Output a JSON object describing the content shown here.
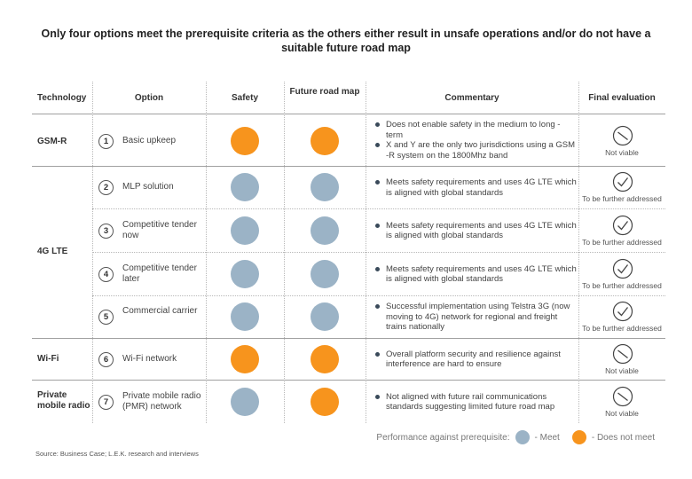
{
  "title": "Only four options meet the prerequisite criteria as the others either result in unsafe operations and/or do not have a suitable future road map",
  "headers": {
    "technology": "Technology",
    "option": "Option",
    "safety": "Safety",
    "future": "Future road map",
    "commentary": "Commentary",
    "final": "Final evaluation"
  },
  "technologies": [
    "GSM-R",
    "4G LTE",
    "Wi-Fi",
    "Private mobile radio"
  ],
  "options": [
    {
      "num": "1",
      "label": "Basic upkeep",
      "safety": "Does not meet",
      "future": "Does not meet",
      "comments": [
        "Does not enable safety in the medium to long  - term",
        "X and Y are the only two jurisdictions using a GSM -R system on the 1800Mhz band"
      ],
      "eval": "Not viable"
    },
    {
      "num": "2",
      "label": "MLP solution",
      "safety": "Meet",
      "future": "Meet",
      "comments": [
        "Meets safety requirements and uses 4G LTE which is aligned with global standards"
      ],
      "eval": "To be further addressed"
    },
    {
      "num": "3",
      "label": "Competitive tender now",
      "safety": "Meet",
      "future": "Meet",
      "comments": [
        "Meets safety requirements and uses 4G LTE which is aligned with global standards"
      ],
      "eval": "To be further addressed"
    },
    {
      "num": "4",
      "label": "Competitive tender later",
      "safety": "Meet",
      "future": "Meet",
      "comments": [
        "Meets safety requirements and uses 4G LTE which is aligned with global standards"
      ],
      "eval": "To be further addressed"
    },
    {
      "num": "5",
      "label": "Commercial carrier",
      "safety": "Meet",
      "future": "Meet",
      "comments": [
        "Successful implementation using Telstra 3G (now moving to 4G) network for regional and freight trains nationally"
      ],
      "eval": "To be further addressed"
    },
    {
      "num": "6",
      "label": "Wi-Fi network",
      "safety": "Does not meet",
      "future": "Does not meet",
      "comments": [
        "Overall platform security and resilience against interference are hard to ensure"
      ],
      "eval": "Not viable"
    },
    {
      "num": "7",
      "label": "Private mobile radio (PMR) network",
      "safety": "Meet",
      "future": "Does not meet",
      "comments": [
        "Not aligned with future rail communications standards suggesting limited future road map"
      ],
      "eval": "Not viable"
    }
  ],
  "legend": {
    "label": "Performance against prerequisite:",
    "meet": "- Meet",
    "not_meet": "- Does not meet",
    "meet_color": "#9bb3c6",
    "not_meet_color": "#f7941d"
  },
  "source": "Source:   Business Case; L.E.K. research and interviews"
}
